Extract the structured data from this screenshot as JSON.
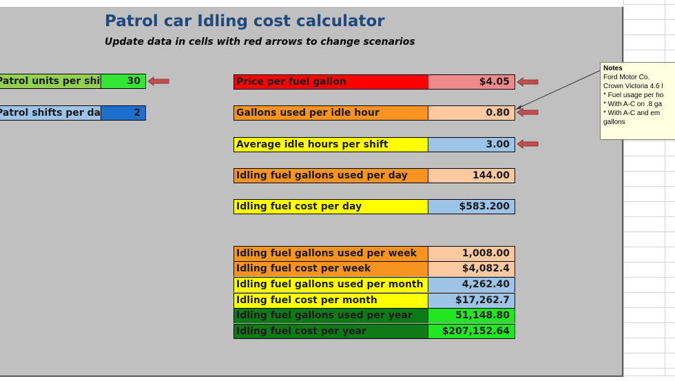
{
  "title": "Patrol car Idling cost calculator",
  "subtitle": "Update data in cells with red arrows to change scenarios",
  "inputs_left": [
    {
      "label": "Patrol units per shift",
      "value": "30",
      "label_color": "#92d050",
      "value_color": "#33e633"
    },
    {
      "label": "Patrol shifts per day",
      "value": "2",
      "label_color": "#9dc3e6",
      "value_color": "#1f6fce"
    }
  ],
  "rows_right": [
    {
      "label": "Price per fuel gallon",
      "value": "$4.05",
      "label_color": "#ff0000",
      "value_color": "#f08a8a"
    },
    {
      "label": "Gallons used per idle hour",
      "value": "0.80",
      "label_color": "#f79320",
      "value_color": "#fcc9a0"
    },
    {
      "label": "Average idle hours per shift",
      "value": "3.00",
      "label_color": "#ffff00",
      "value_color": "#9dc3e6"
    },
    {
      "label": "Idling fuel gallons used per day",
      "value": "144.00",
      "label_color": "#f79320",
      "value_color": "#fcc9a0"
    },
    {
      "label": "Idling fuel cost per day",
      "value": "$583.200",
      "label_color": "#ffff00",
      "value_color": "#9dc3e6"
    }
  ],
  "summary_rows": [
    {
      "label": "Idling fuel gallons used per week",
      "value": "1,008.00",
      "label_color": "#f79320",
      "value_color": "#fcc9a0"
    },
    {
      "label": "Idling fuel cost per week",
      "value": "$4,082.4",
      "label_color": "#f79320",
      "value_color": "#fcc9a0"
    },
    {
      "label": "Idling fuel gallons used per month",
      "value": "4,262.40",
      "label_color": "#ffff00",
      "value_color": "#9dc3e6"
    },
    {
      "label": "Idling fuel cost per month",
      "value": "$17,262.7",
      "label_color": "#ffff00",
      "value_color": "#9dc3e6"
    },
    {
      "label": "Idling fuel gallons used per year",
      "value": "51,148.80",
      "label_color": "#0e7a16",
      "value_color": "#22e622"
    },
    {
      "label": "Idling fuel cost per year",
      "value": "$207,152.64",
      "label_color": "#0e7a16",
      "value_color": "#22e622"
    }
  ],
  "note": {
    "title": "Notes",
    "lines": [
      "Ford Motor Co.",
      "Crown Victoria 4.6 l",
      "* Fuel usage per ho",
      "* With A-C on .8 ga",
      "* With A-C and em",
      "gallons"
    ]
  },
  "colors": {
    "sheet_background": "#c0c0c0",
    "title": "#1f497d",
    "arrow": "#c0504d",
    "note_background": "#ffffe1"
  },
  "icons": {
    "input_marker": "red-left-arrow-icon"
  }
}
